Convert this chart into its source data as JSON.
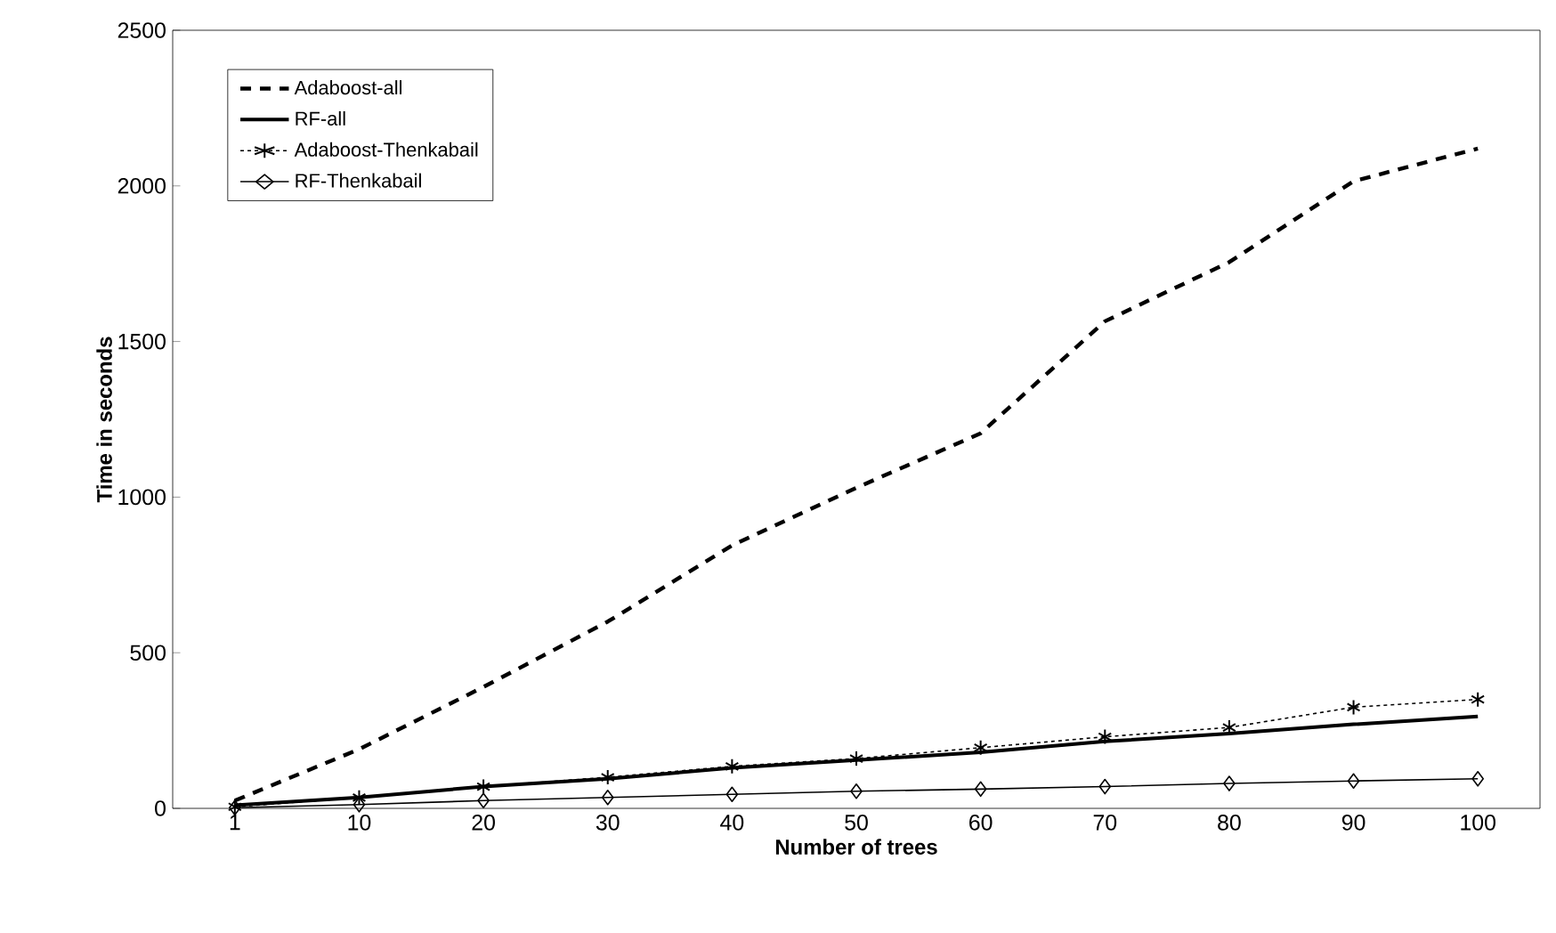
{
  "chart_data": {
    "type": "line",
    "xlabel": "Number of trees",
    "ylabel": "Time in seconds",
    "categories": [
      "1",
      "10",
      "20",
      "30",
      "40",
      "50",
      "60",
      "70",
      "80",
      "90",
      "100"
    ],
    "ylim": [
      0,
      2500
    ],
    "yticks": [
      0,
      500,
      1000,
      1500,
      2000,
      2500
    ],
    "grid": false,
    "legend": "top left",
    "series": [
      {
        "name": "Adaboost-all",
        "color": "#000000",
        "line_style": "dashed",
        "marker": "none",
        "values": [
          25,
          190,
          390,
          600,
          845,
          1030,
          1205,
          1565,
          1755,
          2015,
          2120
        ]
      },
      {
        "name": "RF-all",
        "color": "#000000",
        "line_style": "solid",
        "marker": "none",
        "values": [
          10,
          35,
          70,
          95,
          130,
          155,
          180,
          215,
          240,
          270,
          295
        ]
      },
      {
        "name": "Adaboost-Thenkabail",
        "color": "#000000",
        "line_style": "dotted",
        "marker": "cross",
        "values": [
          5,
          35,
          70,
          100,
          135,
          160,
          195,
          230,
          260,
          325,
          350
        ]
      },
      {
        "name": "RF-Thenkabail",
        "color": "#000000",
        "line_style": "solid",
        "marker": "diamond",
        "values": [
          2,
          12,
          25,
          35,
          45,
          55,
          62,
          70,
          80,
          88,
          95
        ]
      }
    ]
  }
}
